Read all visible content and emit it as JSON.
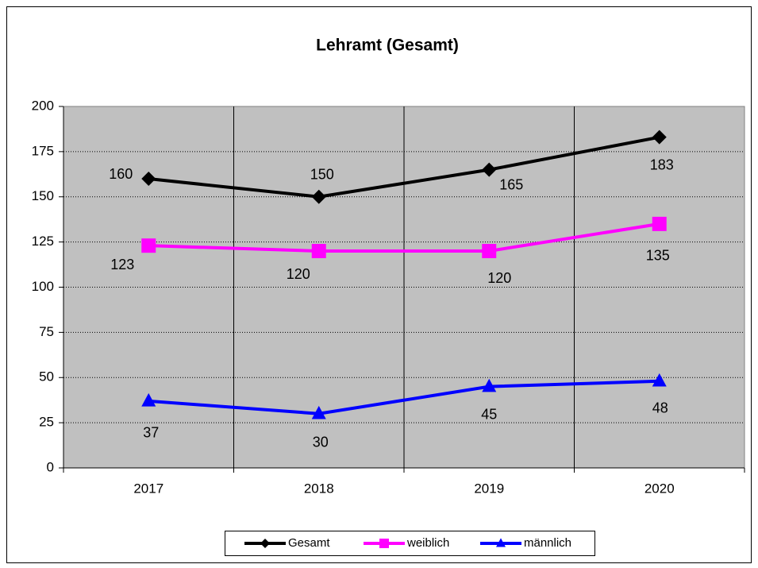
{
  "chart_data": {
    "type": "line",
    "title": "Lehramt (Gesamt)",
    "categories": [
      "2017",
      "2018",
      "2019",
      "2020"
    ],
    "series": [
      {
        "name": "Gesamt",
        "color": "#000000",
        "marker": "diamond",
        "values": [
          160,
          150,
          165,
          183
        ]
      },
      {
        "name": "weiblich",
        "color": "#ff00ff",
        "marker": "square",
        "values": [
          123,
          120,
          120,
          135
        ]
      },
      {
        "name": "männlich",
        "color": "#0000ff",
        "marker": "triangle",
        "values": [
          37,
          30,
          45,
          48
        ]
      }
    ],
    "ylim": [
      0,
      200
    ],
    "yticks": [
      0,
      25,
      50,
      75,
      100,
      125,
      150,
      175,
      200
    ],
    "grid": true,
    "legend": "bottom"
  }
}
